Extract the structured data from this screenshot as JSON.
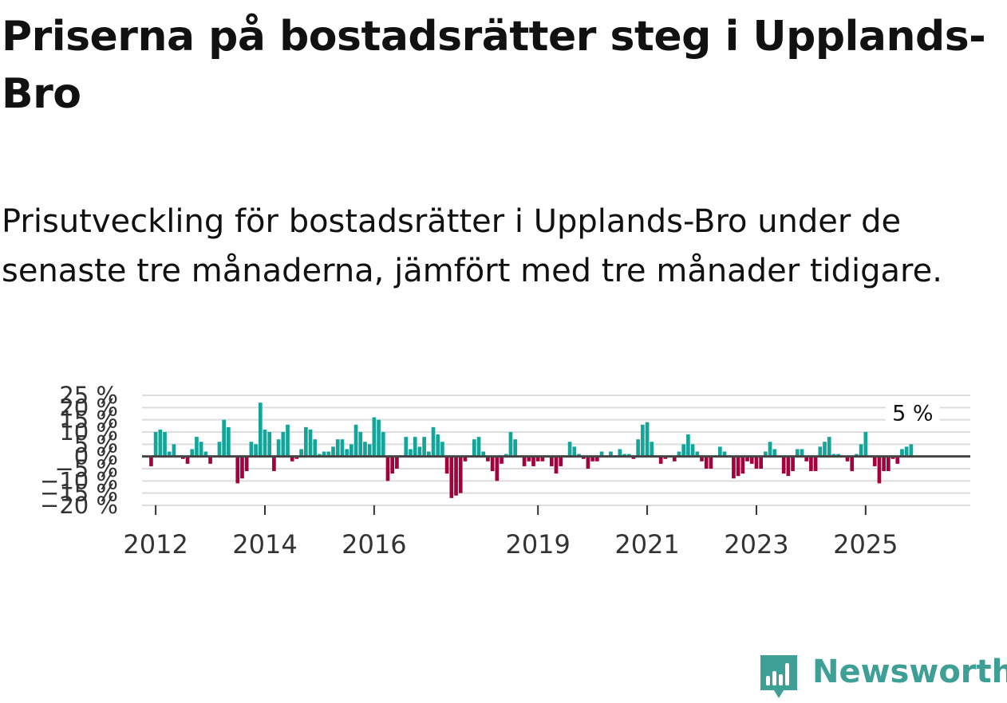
{
  "title": "Priserna på bostadsrätter steg i Upplands-Bro",
  "subtitle": "Prisutveckling för bostadsrätter i Upplands-Bro under de senaste tre månaderna, jämfört med tre månader tidigare.",
  "brand": "Newsworthy",
  "colors": {
    "positive": "#13a59a",
    "negative": "#a3003e",
    "grid": "#dddddd",
    "zero": "#444444",
    "brand": "#3e9f96"
  },
  "chart_data": {
    "type": "bar",
    "title": "",
    "xlabel": "",
    "ylabel": "",
    "ylim": [
      -20,
      25
    ],
    "yticks": [
      25,
      20,
      15,
      10,
      5,
      0,
      -5,
      -10,
      -15,
      -20
    ],
    "ytick_labels": [
      "25 %",
      "20 %",
      "15 %",
      "10 %",
      "5 %",
      "0 %",
      "−5 %",
      "−10 %",
      "−15 %",
      "−20 %"
    ],
    "x_start": "2011-10",
    "x_end": "2026-12",
    "xticks": [
      {
        "label": "2012",
        "date": 2012.0
      },
      {
        "label": "2014",
        "date": 2014.0
      },
      {
        "label": "2016",
        "date": 2016.0
      },
      {
        "label": "2019",
        "date": 2019.0
      },
      {
        "label": "2021",
        "date": 2021.0
      },
      {
        "label": "2023",
        "date": 2023.0
      },
      {
        "label": "2025",
        "date": 2025.0
      }
    ],
    "series_start": "2011-12",
    "values": [
      -4,
      10,
      11,
      10,
      2,
      5,
      0,
      -1,
      -3,
      3,
      8,
      6,
      2,
      -3,
      0,
      6,
      15,
      12,
      0,
      -11,
      -9,
      -6,
      6,
      5,
      22,
      11,
      10,
      -6,
      7,
      10,
      13,
      -2,
      -1,
      3,
      12,
      11,
      7,
      1,
      2,
      2,
      4,
      7,
      7,
      3,
      5,
      13,
      10,
      6,
      5,
      16,
      15,
      10,
      -10,
      -7,
      -5,
      0,
      8,
      3,
      8,
      4,
      8,
      2,
      12,
      9,
      6,
      -7,
      -17,
      -16,
      -15,
      -2,
      0,
      7,
      8,
      2,
      -2,
      -6,
      -10,
      -3,
      1,
      10,
      7,
      0,
      -4,
      -2,
      -4,
      -2,
      -2,
      0,
      -4,
      -7,
      -4,
      0,
      6,
      4,
      1,
      -1,
      -5,
      -2,
      -2,
      2,
      0,
      2,
      0,
      3,
      1,
      1,
      -1,
      7,
      13,
      14,
      6,
      0,
      -3,
      -1,
      0,
      -2,
      2,
      5,
      9,
      5,
      2,
      -2,
      -5,
      -5,
      0,
      4,
      2,
      0,
      -9,
      -8,
      -7,
      -2,
      -3,
      -5,
      -5,
      2,
      6,
      3,
      0,
      -7,
      -8,
      -6,
      3,
      3,
      -2,
      -6,
      -6,
      4,
      6,
      8,
      1,
      1,
      0,
      -2,
      -6,
      1,
      5,
      10,
      0,
      -4,
      -11,
      -6,
      -6,
      -1,
      -3,
      3,
      4,
      5
    ],
    "annotation": {
      "label": "5 %",
      "value": 5
    }
  }
}
